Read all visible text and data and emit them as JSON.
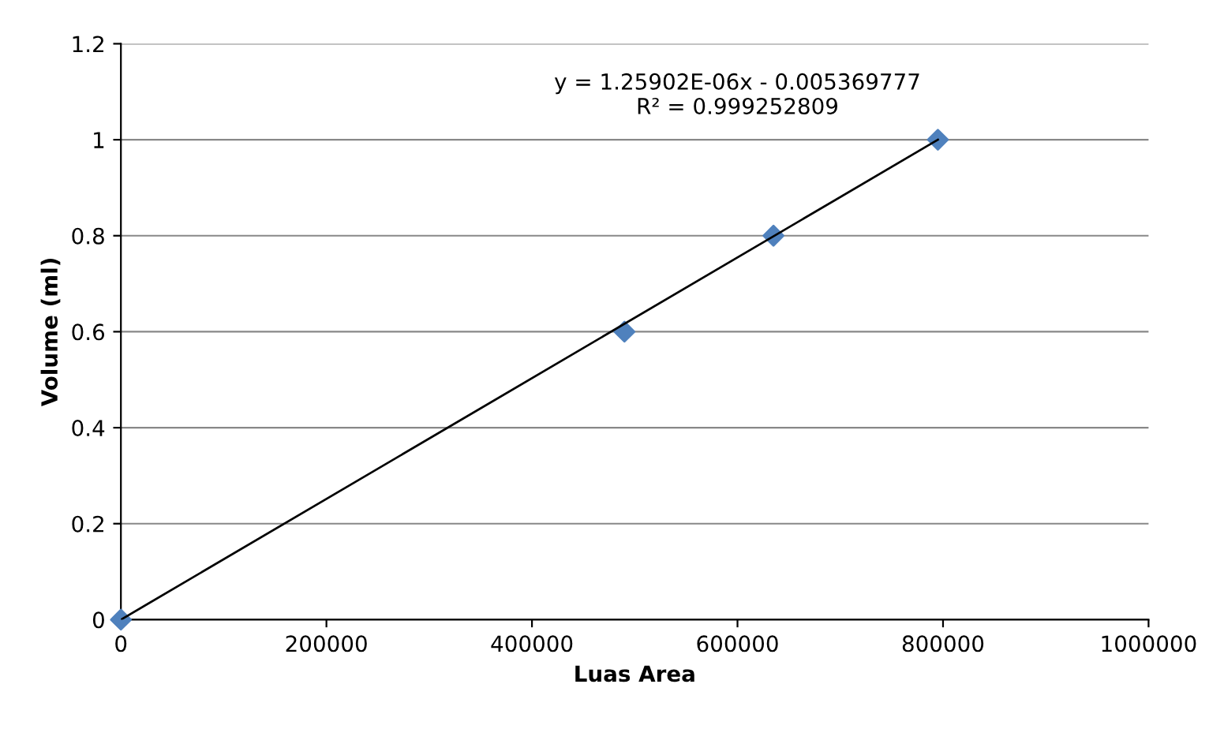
{
  "chart_data": {
    "type": "scatter",
    "xlabel": "Luas Area",
    "ylabel": "Volume (ml)",
    "xlim": [
      0,
      1000000
    ],
    "xticks": [
      0,
      200000,
      400000,
      600000,
      800000,
      1000000
    ],
    "ylim": [
      0,
      1.2
    ],
    "yticks": [
      0,
      0.2,
      0.4,
      0.6,
      0.8,
      1,
      1.2
    ],
    "grid": "y",
    "marker": "diamond",
    "series": [
      {
        "color": "#4f81bd",
        "x": [
          0,
          490000,
          635000,
          795000
        ],
        "values": [
          0,
          0.6,
          0.8,
          1.0
        ]
      },
      {
        "type": "line",
        "marker": "none",
        "color": "#000000",
        "x": [
          0,
          795000
        ],
        "values": [
          0,
          1.0
        ]
      }
    ],
    "annotations": [
      "y = 1.25902E-06x - 0.005369777\nR² = 0.999252809"
    ]
  }
}
